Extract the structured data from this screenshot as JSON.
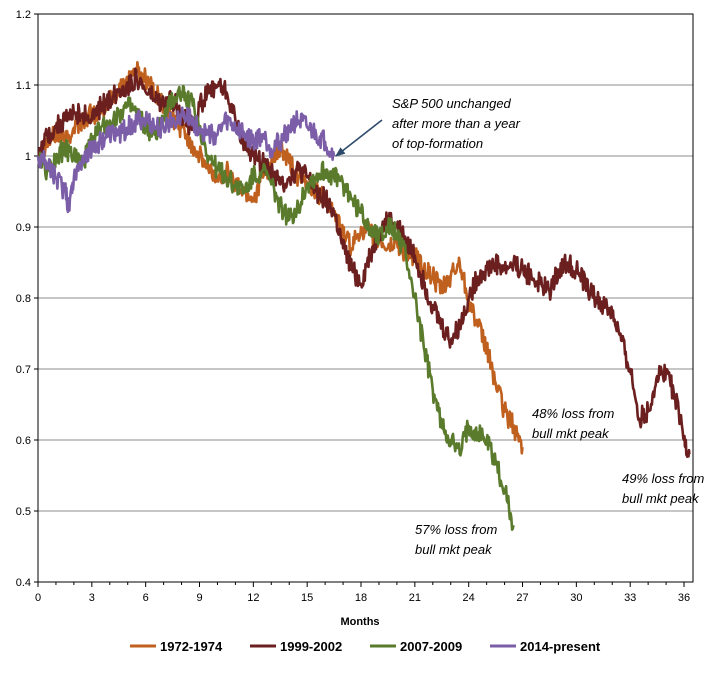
{
  "chart_data": {
    "type": "line",
    "xlabel": "Months",
    "ylabel": "",
    "xlim": [
      0,
      36.5
    ],
    "ylim": [
      0.4,
      1.2
    ],
    "x_ticks": [
      "0",
      "3",
      "6",
      "9",
      "12",
      "15",
      "18",
      "21",
      "24",
      "27",
      "30",
      "33",
      "36"
    ],
    "y_ticks": [
      "0.4",
      "0.5",
      "0.6",
      "0.7",
      "0.8",
      "0.9",
      "1",
      "1.1",
      "1.2"
    ],
    "grid": "horizontal",
    "legend_position": "bottom",
    "series": [
      {
        "name": "1972-1974",
        "color": "#C0601E",
        "points": [
          [
            0,
            1.0
          ],
          [
            0.5,
            1.02
          ],
          [
            1,
            1.03
          ],
          [
            1.5,
            1.02
          ],
          [
            2,
            1.04
          ],
          [
            2.5,
            1.05
          ],
          [
            3,
            1.06
          ],
          [
            3.5,
            1.06
          ],
          [
            4,
            1.08
          ],
          [
            4.5,
            1.09
          ],
          [
            5,
            1.11
          ],
          [
            5.5,
            1.12
          ],
          [
            6,
            1.11
          ],
          [
            6.5,
            1.09
          ],
          [
            7,
            1.07
          ],
          [
            7.5,
            1.05
          ],
          [
            8,
            1.04
          ],
          [
            8.5,
            1.02
          ],
          [
            9,
            1.0
          ],
          [
            9.5,
            0.98
          ],
          [
            10,
            0.97
          ],
          [
            10.5,
            0.98
          ],
          [
            11,
            0.96
          ],
          [
            11.5,
            0.95
          ],
          [
            12,
            0.94
          ],
          [
            12.5,
            0.97
          ],
          [
            13,
            0.99
          ],
          [
            13.5,
            1.01
          ],
          [
            14,
            0.99
          ],
          [
            14.5,
            0.97
          ],
          [
            15,
            0.96
          ],
          [
            15.5,
            0.95
          ],
          [
            16,
            0.94
          ],
          [
            16.5,
            0.92
          ],
          [
            17,
            0.89
          ],
          [
            17.5,
            0.87
          ],
          [
            18,
            0.9
          ],
          [
            18.5,
            0.89
          ],
          [
            19,
            0.88
          ],
          [
            19.5,
            0.87
          ],
          [
            20,
            0.88
          ],
          [
            20.5,
            0.86
          ],
          [
            21,
            0.86
          ],
          [
            21.5,
            0.84
          ],
          [
            22,
            0.83
          ],
          [
            22.5,
            0.81
          ],
          [
            23,
            0.83
          ],
          [
            23.5,
            0.85
          ],
          [
            24,
            0.8
          ],
          [
            24.5,
            0.76
          ],
          [
            25,
            0.73
          ],
          [
            25.5,
            0.68
          ],
          [
            26,
            0.64
          ],
          [
            26.5,
            0.62
          ],
          [
            27,
            0.59
          ]
        ]
      },
      {
        "name": "1999-2002",
        "color": "#6B1F1F",
        "points": [
          [
            0,
            1.0
          ],
          [
            0.5,
            1.03
          ],
          [
            1,
            1.04
          ],
          [
            1.5,
            1.05
          ],
          [
            2,
            1.06
          ],
          [
            2.5,
            1.06
          ],
          [
            3,
            1.05
          ],
          [
            3.5,
            1.07
          ],
          [
            4,
            1.08
          ],
          [
            4.5,
            1.09
          ],
          [
            5,
            1.1
          ],
          [
            5.5,
            1.11
          ],
          [
            6,
            1.09
          ],
          [
            6.5,
            1.08
          ],
          [
            7,
            1.07
          ],
          [
            7.5,
            1.08
          ],
          [
            8,
            1.06
          ],
          [
            8.5,
            1.04
          ],
          [
            9,
            1.07
          ],
          [
            9.5,
            1.09
          ],
          [
            10,
            1.1
          ],
          [
            10.5,
            1.09
          ],
          [
            11,
            1.05
          ],
          [
            11.5,
            1.02
          ],
          [
            12,
            1.0
          ],
          [
            12.5,
            0.99
          ],
          [
            13,
            0.98
          ],
          [
            13.5,
            0.96
          ],
          [
            14,
            0.97
          ],
          [
            14.5,
            0.98
          ],
          [
            15,
            0.97
          ],
          [
            15.5,
            0.95
          ],
          [
            16,
            0.94
          ],
          [
            16.5,
            0.92
          ],
          [
            17,
            0.87
          ],
          [
            17.5,
            0.84
          ],
          [
            18,
            0.82
          ],
          [
            18.5,
            0.86
          ],
          [
            19,
            0.89
          ],
          [
            19.5,
            0.91
          ],
          [
            20,
            0.9
          ],
          [
            20.5,
            0.88
          ],
          [
            21,
            0.86
          ],
          [
            21.5,
            0.82
          ],
          [
            22,
            0.79
          ],
          [
            22.5,
            0.76
          ],
          [
            23,
            0.74
          ],
          [
            23.5,
            0.76
          ],
          [
            24,
            0.8
          ],
          [
            24.5,
            0.83
          ],
          [
            25,
            0.84
          ],
          [
            25.5,
            0.85
          ],
          [
            26,
            0.84
          ],
          [
            26.5,
            0.85
          ],
          [
            27,
            0.84
          ],
          [
            27.5,
            0.83
          ],
          [
            28,
            0.82
          ],
          [
            28.5,
            0.81
          ],
          [
            29,
            0.84
          ],
          [
            29.5,
            0.85
          ],
          [
            30,
            0.84
          ],
          [
            30.5,
            0.82
          ],
          [
            31,
            0.8
          ],
          [
            31.5,
            0.79
          ],
          [
            32,
            0.78
          ],
          [
            32.5,
            0.74
          ],
          [
            33,
            0.7
          ],
          [
            33.5,
            0.63
          ],
          [
            34,
            0.64
          ],
          [
            34.5,
            0.69
          ],
          [
            35,
            0.7
          ],
          [
            35.5,
            0.66
          ],
          [
            36,
            0.6
          ],
          [
            36.3,
            0.58
          ]
        ]
      },
      {
        "name": "2007-2009",
        "color": "#5A7A2C",
        "points": [
          [
            0,
            1.0
          ],
          [
            0.5,
            0.98
          ],
          [
            1,
            1.0
          ],
          [
            1.5,
            1.01
          ],
          [
            2,
            1.0
          ],
          [
            2.5,
            0.99
          ],
          [
            3,
            1.02
          ],
          [
            3.5,
            1.04
          ],
          [
            4,
            1.05
          ],
          [
            4.5,
            1.06
          ],
          [
            5,
            1.07
          ],
          [
            5.5,
            1.06
          ],
          [
            6,
            1.04
          ],
          [
            6.5,
            1.03
          ],
          [
            7,
            1.05
          ],
          [
            7.5,
            1.08
          ],
          [
            8,
            1.09
          ],
          [
            8.5,
            1.08
          ],
          [
            9,
            1.04
          ],
          [
            9.5,
            1.0
          ],
          [
            10,
            0.98
          ],
          [
            10.5,
            0.97
          ],
          [
            11,
            0.96
          ],
          [
            11.5,
            0.95
          ],
          [
            12,
            0.97
          ],
          [
            12.5,
            0.98
          ],
          [
            13,
            0.96
          ],
          [
            13.5,
            0.93
          ],
          [
            14,
            0.91
          ],
          [
            14.5,
            0.93
          ],
          [
            15,
            0.96
          ],
          [
            15.5,
            0.97
          ],
          [
            16,
            0.98
          ],
          [
            16.5,
            0.97
          ],
          [
            17,
            0.96
          ],
          [
            17.5,
            0.94
          ],
          [
            18,
            0.92
          ],
          [
            18.5,
            0.9
          ],
          [
            19,
            0.89
          ],
          [
            19.5,
            0.9
          ],
          [
            20,
            0.89
          ],
          [
            20.5,
            0.86
          ],
          [
            21,
            0.8
          ],
          [
            21.5,
            0.73
          ],
          [
            22,
            0.67
          ],
          [
            22.5,
            0.62
          ],
          [
            23,
            0.6
          ],
          [
            23.5,
            0.58
          ],
          [
            24,
            0.62
          ],
          [
            24.5,
            0.61
          ],
          [
            25,
            0.6
          ],
          [
            25.5,
            0.57
          ],
          [
            26,
            0.53
          ],
          [
            26.5,
            0.48
          ]
        ]
      },
      {
        "name": "2014-present",
        "color": "#7B5EA7",
        "points": [
          [
            0,
            1.0
          ],
          [
            0.5,
            0.99
          ],
          [
            1,
            0.97
          ],
          [
            1.5,
            0.95
          ],
          [
            1.7,
            0.93
          ],
          [
            2,
            0.97
          ],
          [
            2.5,
            1.0
          ],
          [
            3,
            1.01
          ],
          [
            3.5,
            1.02
          ],
          [
            4,
            1.03
          ],
          [
            4.5,
            1.03
          ],
          [
            5,
            1.04
          ],
          [
            5.5,
            1.05
          ],
          [
            6,
            1.05
          ],
          [
            6.5,
            1.04
          ],
          [
            7,
            1.04
          ],
          [
            7.5,
            1.05
          ],
          [
            8,
            1.06
          ],
          [
            8.5,
            1.05
          ],
          [
            9,
            1.04
          ],
          [
            9.5,
            1.03
          ],
          [
            10,
            1.03
          ],
          [
            10.5,
            1.05
          ],
          [
            11,
            1.04
          ],
          [
            11.5,
            1.03
          ],
          [
            12,
            1.02
          ],
          [
            12.5,
            1.03
          ],
          [
            13,
            1.01
          ],
          [
            13.5,
            1.02
          ],
          [
            14,
            1.04
          ],
          [
            14.5,
            1.05
          ],
          [
            15,
            1.04
          ],
          [
            15.5,
            1.03
          ],
          [
            16,
            1.02
          ],
          [
            16.5,
            1.0
          ]
        ]
      }
    ],
    "annotations": [
      {
        "lines": [
          "S&P 500 unchanged",
          "after more than a year",
          "of top-formation"
        ],
        "arrow_to": [
          16.6,
          1.0
        ]
      },
      {
        "lines": [
          "48% loss from",
          "bull mkt peak"
        ]
      },
      {
        "lines": [
          "49% loss from",
          "bull mkt peak"
        ]
      },
      {
        "lines": [
          "57% loss from",
          "bull mkt peak"
        ]
      }
    ]
  }
}
